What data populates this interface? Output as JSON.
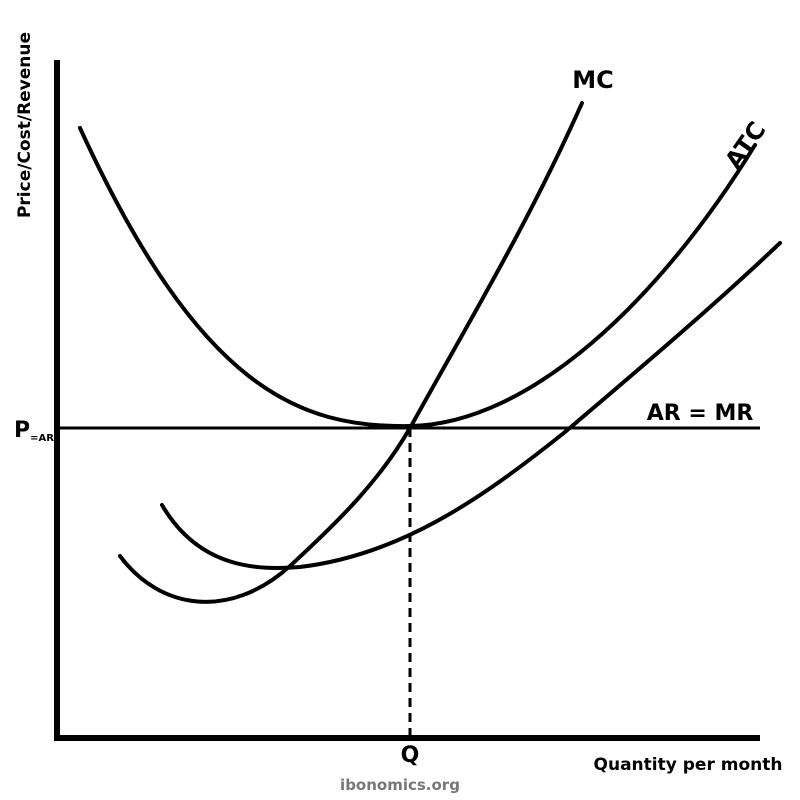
{
  "y_axis_label": "Price/Cost/Revenue",
  "x_axis_label": "Quantity per month",
  "curves": {
    "mc": "MC",
    "atc": "ATC"
  },
  "ar_mr_label": "AR = MR",
  "price_label": {
    "main": "P",
    "subscript": "=AR"
  },
  "quantity_label": "Q",
  "watermark": "ibonomics.org"
}
